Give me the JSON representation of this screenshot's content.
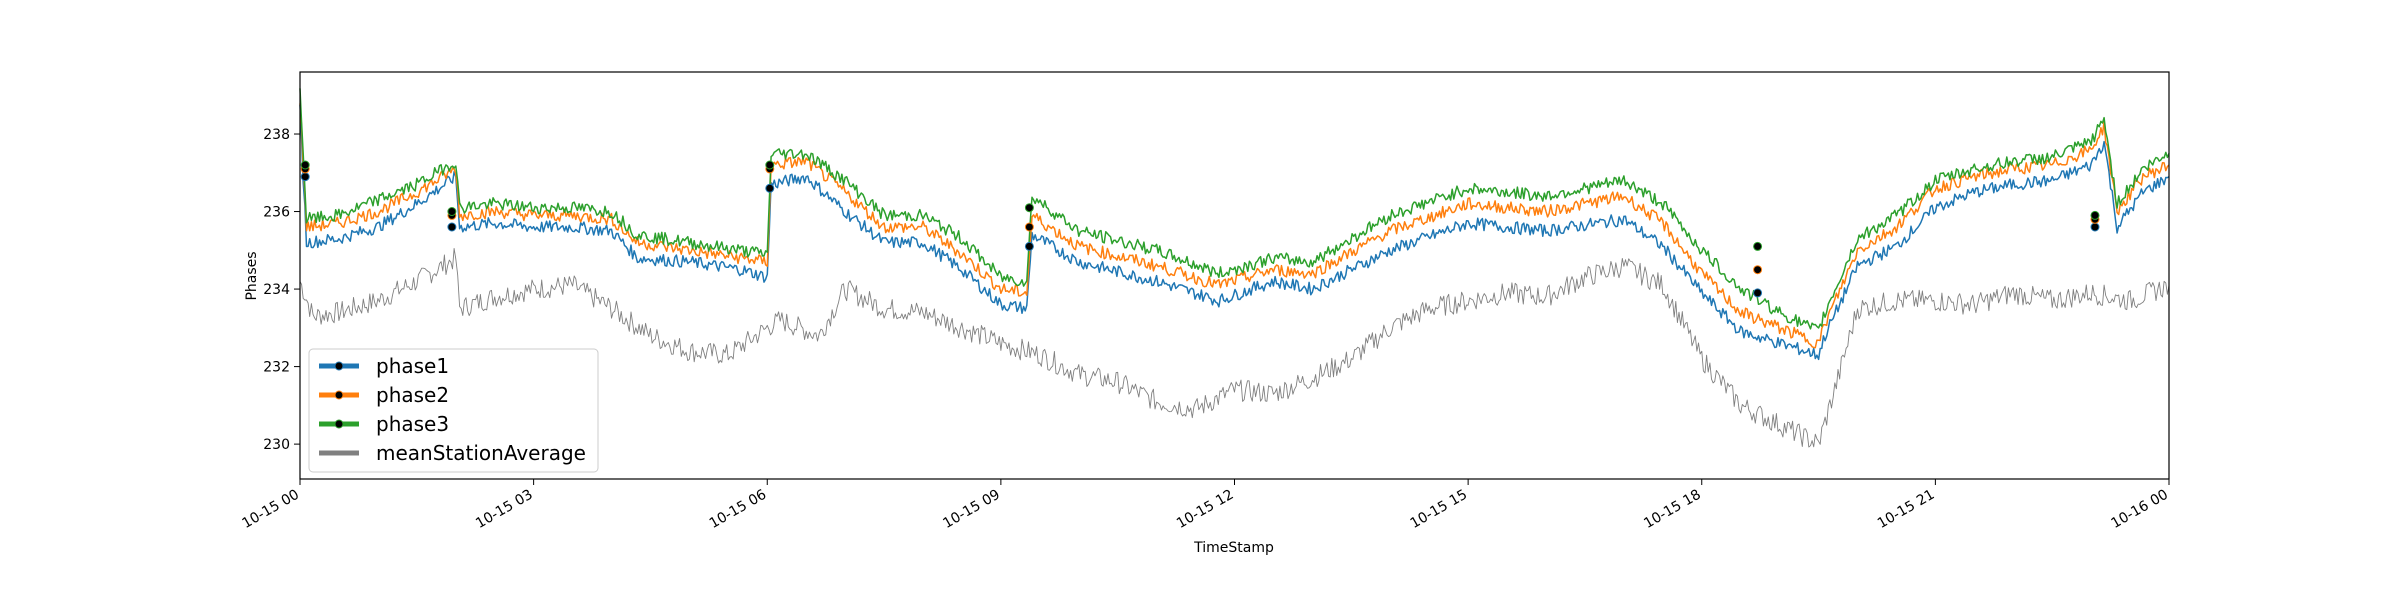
{
  "chart_data": {
    "type": "line",
    "xlabel": "TimeStamp",
    "ylabel": "Phases",
    "x_range": [
      "2019-10-15 00:00",
      "2019-10-16 00:00"
    ],
    "ylim": [
      229.1,
      239.6
    ],
    "x_ticks": [
      {
        "t": "2019-10-15 00:00",
        "label": "10-15 00"
      },
      {
        "t": "2019-10-15 03:00",
        "label": "10-15 03"
      },
      {
        "t": "2019-10-15 06:00",
        "label": "10-15 06"
      },
      {
        "t": "2019-10-15 09:00",
        "label": "10-15 09"
      },
      {
        "t": "2019-10-15 12:00",
        "label": "10-15 12"
      },
      {
        "t": "2019-10-15 15:00",
        "label": "10-15 15"
      },
      {
        "t": "2019-10-15 18:00",
        "label": "10-15 18"
      },
      {
        "t": "2019-10-15 21:00",
        "label": "10-15 21"
      },
      {
        "t": "2019-10-16 00:00",
        "label": "10-16 00"
      }
    ],
    "y_ticks": [
      230,
      232,
      234,
      236,
      238
    ],
    "grid": false,
    "legend_position": "lower-left",
    "series": [
      {
        "name": "phase1",
        "color": "#1f77b4",
        "x": [
          "2019-10-15 00:00",
          "2019-10-15 00:05",
          "2019-10-15 00:30",
          "2019-10-15 01:00",
          "2019-10-15 01:30",
          "2019-10-15 02:00",
          "2019-10-15 02:03",
          "2019-10-15 02:30",
          "2019-10-15 03:00",
          "2019-10-15 03:30",
          "2019-10-15 04:00",
          "2019-10-15 04:20",
          "2019-10-15 05:00",
          "2019-10-15 05:40",
          "2019-10-15 06:00",
          "2019-10-15 06:03",
          "2019-10-15 06:30",
          "2019-10-15 07:00",
          "2019-10-15 07:30",
          "2019-10-15 08:00",
          "2019-10-15 08:30",
          "2019-10-15 09:00",
          "2019-10-15 09:20",
          "2019-10-15 09:24",
          "2019-10-15 10:00",
          "2019-10-15 11:00",
          "2019-10-15 11:48",
          "2019-10-15 12:30",
          "2019-10-15 13:00",
          "2019-10-15 14:00",
          "2019-10-15 15:00",
          "2019-10-15 16:00",
          "2019-10-15 17:00",
          "2019-10-15 17:30",
          "2019-10-15 18:00",
          "2019-10-15 18:30",
          "2019-10-15 19:00",
          "2019-10-15 19:30",
          "2019-10-15 19:35",
          "2019-10-15 20:00",
          "2019-10-15 20:30",
          "2019-10-15 21:00",
          "2019-10-15 21:30",
          "2019-10-15 22:00",
          "2019-10-15 22:30",
          "2019-10-15 23:00",
          "2019-10-15 23:10",
          "2019-10-15 23:20",
          "2019-10-15 23:40",
          "2019-10-16 00:00"
        ],
        "y": [
          238.6,
          235.2,
          235.3,
          235.6,
          236.2,
          236.9,
          235.6,
          235.7,
          235.6,
          235.6,
          235.5,
          234.8,
          234.7,
          234.5,
          234.3,
          236.7,
          236.9,
          236.0,
          235.2,
          235.2,
          234.5,
          233.6,
          233.5,
          235.4,
          234.7,
          234.2,
          233.7,
          234.2,
          234.0,
          235.0,
          235.7,
          235.5,
          235.8,
          235.1,
          233.9,
          232.9,
          232.6,
          232.3,
          232.8,
          234.6,
          235.1,
          236.1,
          236.5,
          236.7,
          236.8,
          237.2,
          237.8,
          235.6,
          236.5,
          236.9
        ]
      },
      {
        "name": "phase2",
        "color": "#ff7f0e",
        "x": [
          "2019-10-15 00:00",
          "2019-10-15 00:05",
          "2019-10-15 00:30",
          "2019-10-15 01:00",
          "2019-10-15 01:30",
          "2019-10-15 02:00",
          "2019-10-15 02:03",
          "2019-10-15 02:30",
          "2019-10-15 03:00",
          "2019-10-15 03:30",
          "2019-10-15 04:00",
          "2019-10-15 04:20",
          "2019-10-15 05:00",
          "2019-10-15 05:40",
          "2019-10-15 06:00",
          "2019-10-15 06:03",
          "2019-10-15 06:30",
          "2019-10-15 07:00",
          "2019-10-15 07:30",
          "2019-10-15 08:00",
          "2019-10-15 08:30",
          "2019-10-15 09:00",
          "2019-10-15 09:20",
          "2019-10-15 09:24",
          "2019-10-15 10:00",
          "2019-10-15 11:00",
          "2019-10-15 11:48",
          "2019-10-15 12:30",
          "2019-10-15 13:00",
          "2019-10-15 14:00",
          "2019-10-15 15:00",
          "2019-10-15 16:00",
          "2019-10-15 17:00",
          "2019-10-15 17:30",
          "2019-10-15 18:00",
          "2019-10-15 18:30",
          "2019-10-15 19:00",
          "2019-10-15 19:30",
          "2019-10-15 19:35",
          "2019-10-15 20:00",
          "2019-10-15 20:30",
          "2019-10-15 21:00",
          "2019-10-15 21:30",
          "2019-10-15 22:00",
          "2019-10-15 22:30",
          "2019-10-15 23:00",
          "2019-10-15 23:10",
          "2019-10-15 23:20",
          "2019-10-15 23:40",
          "2019-10-16 00:00"
        ],
        "y": [
          238.9,
          235.6,
          235.7,
          236.0,
          236.5,
          237.1,
          235.9,
          236.0,
          235.9,
          235.9,
          235.8,
          235.2,
          235.0,
          234.8,
          234.7,
          237.2,
          237.3,
          236.5,
          235.6,
          235.6,
          234.9,
          234.0,
          233.9,
          235.9,
          235.1,
          234.6,
          234.1,
          234.5,
          234.4,
          235.5,
          236.2,
          236.0,
          236.4,
          235.7,
          234.4,
          233.4,
          233.0,
          232.6,
          233.1,
          235.0,
          235.6,
          236.6,
          236.9,
          237.1,
          237.2,
          237.6,
          238.2,
          236.0,
          236.9,
          237.2
        ]
      },
      {
        "name": "phase3",
        "color": "#2ca02c",
        "x": [
          "2019-10-15 00:00",
          "2019-10-15 00:05",
          "2019-10-15 00:30",
          "2019-10-15 01:00",
          "2019-10-15 01:30",
          "2019-10-15 02:00",
          "2019-10-15 02:03",
          "2019-10-15 02:30",
          "2019-10-15 03:00",
          "2019-10-15 03:30",
          "2019-10-15 04:00",
          "2019-10-15 04:20",
          "2019-10-15 05:00",
          "2019-10-15 05:40",
          "2019-10-15 06:00",
          "2019-10-15 06:03",
          "2019-10-15 06:30",
          "2019-10-15 07:00",
          "2019-10-15 07:30",
          "2019-10-15 08:00",
          "2019-10-15 08:30",
          "2019-10-15 09:00",
          "2019-10-15 09:20",
          "2019-10-15 09:24",
          "2019-10-15 10:00",
          "2019-10-15 11:00",
          "2019-10-15 11:48",
          "2019-10-15 12:30",
          "2019-10-15 13:00",
          "2019-10-15 14:00",
          "2019-10-15 15:00",
          "2019-10-15 16:00",
          "2019-10-15 17:00",
          "2019-10-15 17:30",
          "2019-10-15 18:00",
          "2019-10-15 18:30",
          "2019-10-15 19:00",
          "2019-10-15 19:30",
          "2019-10-15 19:35",
          "2019-10-15 20:00",
          "2019-10-15 20:30",
          "2019-10-15 21:00",
          "2019-10-15 21:30",
          "2019-10-15 22:00",
          "2019-10-15 22:30",
          "2019-10-15 23:00",
          "2019-10-15 23:10",
          "2019-10-15 23:20",
          "2019-10-15 23:40",
          "2019-10-16 00:00"
        ],
        "y": [
          239.2,
          235.8,
          235.9,
          236.3,
          236.7,
          237.3,
          236.1,
          236.2,
          236.1,
          236.1,
          236.0,
          235.4,
          235.2,
          235.0,
          234.9,
          237.5,
          237.5,
          236.8,
          235.9,
          235.9,
          235.3,
          234.3,
          234.2,
          236.4,
          235.5,
          235.0,
          234.4,
          234.8,
          234.7,
          235.9,
          236.6,
          236.4,
          236.8,
          236.2,
          235.0,
          234.0,
          233.4,
          232.9,
          233.4,
          235.3,
          235.9,
          236.8,
          237.1,
          237.3,
          237.4,
          237.8,
          238.4,
          236.2,
          237.1,
          237.5
        ]
      },
      {
        "name": "meanStationAverage",
        "color": "#808080",
        "x": [
          "2019-10-15 00:00",
          "2019-10-15 00:10",
          "2019-10-15 00:30",
          "2019-10-15 01:00",
          "2019-10-15 01:30",
          "2019-10-15 02:00",
          "2019-10-15 02:03",
          "2019-10-15 02:30",
          "2019-10-15 03:00",
          "2019-10-15 03:30",
          "2019-10-15 04:00",
          "2019-10-15 04:30",
          "2019-10-15 05:00",
          "2019-10-15 05:30",
          "2019-10-15 06:00",
          "2019-10-15 06:10",
          "2019-10-15 06:40",
          "2019-10-15 07:00",
          "2019-10-15 07:30",
          "2019-10-15 08:00",
          "2019-10-15 08:30",
          "2019-10-15 09:00",
          "2019-10-15 09:30",
          "2019-10-15 10:00",
          "2019-10-15 10:30",
          "2019-10-15 11:00",
          "2019-10-15 11:30",
          "2019-10-15 12:00",
          "2019-10-15 12:30",
          "2019-10-15 13:00",
          "2019-10-15 13:30",
          "2019-10-15 14:00",
          "2019-10-15 14:30",
          "2019-10-15 15:00",
          "2019-10-15 15:30",
          "2019-10-15 16:00",
          "2019-10-15 16:30",
          "2019-10-15 17:00",
          "2019-10-15 17:30",
          "2019-10-15 18:00",
          "2019-10-15 18:30",
          "2019-10-15 19:00",
          "2019-10-15 19:30",
          "2019-10-15 19:45",
          "2019-10-15 20:00",
          "2019-10-15 20:30",
          "2019-10-15 21:00",
          "2019-10-15 21:30",
          "2019-10-15 22:00",
          "2019-10-15 22:30",
          "2019-10-15 23:00",
          "2019-10-15 23:30",
          "2019-10-16 00:00"
        ],
        "y": [
          234.2,
          233.3,
          233.4,
          233.7,
          234.2,
          234.8,
          233.5,
          233.8,
          234.0,
          234.1,
          233.5,
          232.8,
          232.4,
          232.3,
          233.0,
          233.2,
          232.8,
          234.0,
          233.5,
          233.4,
          233.0,
          232.6,
          232.3,
          231.8,
          231.6,
          231.1,
          230.9,
          231.4,
          231.3,
          231.7,
          232.2,
          233.0,
          233.5,
          233.7,
          233.9,
          233.8,
          234.3,
          234.6,
          234.1,
          232.2,
          231.0,
          230.5,
          230.0,
          231.7,
          233.5,
          233.7,
          233.7,
          233.6,
          233.9,
          233.7,
          233.9,
          233.7,
          234.1
        ]
      }
    ],
    "markers": [
      {
        "series": "phase1",
        "points": [
          [
            "2019-10-15 00:04",
            236.9
          ],
          [
            "2019-10-15 01:57",
            235.6
          ],
          [
            "2019-10-15 06:02",
            236.6
          ],
          [
            "2019-10-15 09:22",
            235.1
          ],
          [
            "2019-10-15 18:43",
            233.9
          ],
          [
            "2019-10-15 23:03",
            235.6
          ]
        ]
      },
      {
        "series": "phase2",
        "points": [
          [
            "2019-10-15 00:04",
            237.1
          ],
          [
            "2019-10-15 01:57",
            235.9
          ],
          [
            "2019-10-15 06:02",
            237.1
          ],
          [
            "2019-10-15 09:22",
            235.6
          ],
          [
            "2019-10-15 18:43",
            234.5
          ],
          [
            "2019-10-15 23:03",
            235.8
          ]
        ]
      },
      {
        "series": "phase3",
        "points": [
          [
            "2019-10-15 00:04",
            237.2
          ],
          [
            "2019-10-15 01:57",
            236.0
          ],
          [
            "2019-10-15 06:02",
            237.2
          ],
          [
            "2019-10-15 09:22",
            236.1
          ],
          [
            "2019-10-15 18:43",
            235.1
          ],
          [
            "2019-10-15 23:03",
            235.9
          ]
        ]
      }
    ],
    "legend": [
      {
        "label": "phase1",
        "color": "#1f77b4",
        "marker": true
      },
      {
        "label": "phase2",
        "color": "#ff7f0e",
        "marker": true
      },
      {
        "label": "phase3",
        "color": "#2ca02c",
        "marker": true
      },
      {
        "label": "meanStationAverage",
        "color": "#808080",
        "marker": false
      }
    ]
  }
}
